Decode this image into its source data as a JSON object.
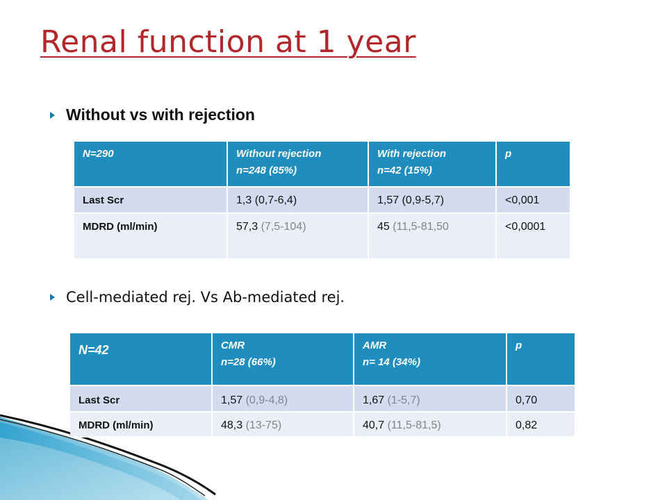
{
  "title": "Renal function at 1 year",
  "bullets": [
    "Without vs with rejection",
    "Cell-mediated rej. Vs Ab-mediated rej."
  ],
  "table1": {
    "header": [
      {
        "line1": "N=290",
        "line2": ""
      },
      {
        "line1": "Without  rejection",
        "line2": "n=248 (85%)"
      },
      {
        "line1": "With rejection",
        "line2": "n=42 (15%)"
      },
      {
        "line1": "p",
        "line2": ""
      }
    ],
    "rows": [
      {
        "label": "Last Scr",
        "c1_main": "1,3 (0,7-6,4)",
        "c1_gray": "",
        "c2_main": "1,57 (0,9-5,7)",
        "c2_gray": "",
        "p": "<0,001"
      },
      {
        "label": "MDRD (ml/min)",
        "c1_main": "57,3 ",
        "c1_gray": "(7,5-104)",
        "c2_main": "45 ",
        "c2_gray": "(11,5-81,50",
        "p": "<0,0001"
      }
    ]
  },
  "table2": {
    "header": [
      {
        "line1": "N=42",
        "line2": ""
      },
      {
        "line1": "CMR",
        "line2": "n=28 (66%)"
      },
      {
        "line1": "AMR",
        "line2": "n= 14 (34%)"
      },
      {
        "line1": "p",
        "line2": ""
      }
    ],
    "rows": [
      {
        "label": "Last Scr",
        "c1_main": "1,57 ",
        "c1_gray": "(0,9-4,8)",
        "c2_main": "1,67 ",
        "c2_gray": "(1-5,7)",
        "p": "0,70"
      },
      {
        "label": "MDRD (ml/min)",
        "c1_main": "48,3 ",
        "c1_gray": "(13-75)",
        "c2_main": "40,7 ",
        "c2_gray": "(11,5-81,5)",
        "p": "0,82"
      }
    ]
  },
  "colors": {
    "title": "#b3262a",
    "header_fill": "#1f8dbe",
    "row_fill_1": "#d3dcef",
    "row_fill_2": "#eaeef7",
    "bullet_arrow": "#1c7aa8"
  }
}
